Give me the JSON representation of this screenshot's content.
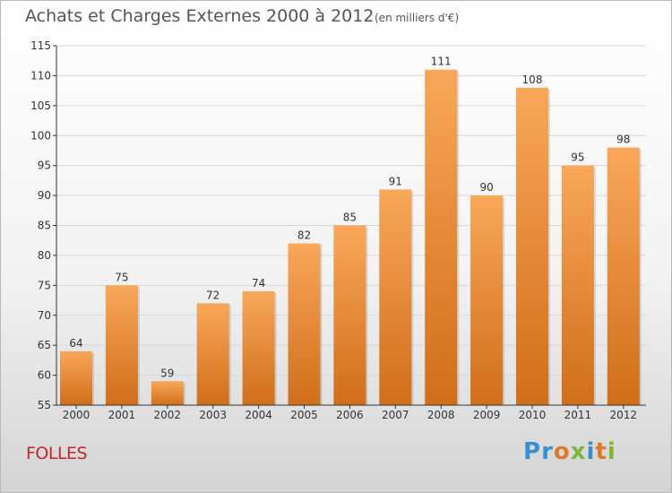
{
  "header": {
    "title": "Achats et Charges Externes 2000 à 2012",
    "unit": "(en milliers d'€)"
  },
  "commune": "FOLLES",
  "logo": {
    "text": "Proxiti",
    "letters": [
      {
        "ch": "P",
        "color": "#3a8fd0"
      },
      {
        "ch": "r",
        "color": "#3a8fd0"
      },
      {
        "ch": "o",
        "color": "#e2762a"
      },
      {
        "ch": "x",
        "color": "#7bb83a"
      },
      {
        "ch": "i",
        "color": "#3a8fd0"
      },
      {
        "ch": "t",
        "color": "#e2762a"
      },
      {
        "ch": "i",
        "color": "#7bb83a"
      }
    ]
  },
  "colors": {
    "bar_top": "#f9a75a",
    "bar_bottom": "#d06e1a",
    "grid": "#d8d8d8",
    "axis": "#333333",
    "text": "#333333"
  },
  "chart_data": {
    "type": "bar",
    "title": "Achats et Charges Externes 2000 à 2012",
    "subtitle": "(en milliers d'€)",
    "categories": [
      "2000",
      "2001",
      "2002",
      "2003",
      "2004",
      "2005",
      "2006",
      "2007",
      "2008",
      "2009",
      "2010",
      "2011",
      "2012"
    ],
    "values": [
      64,
      75,
      59,
      72,
      74,
      82,
      85,
      91,
      111,
      90,
      108,
      95,
      98
    ],
    "data_labels": [
      "64",
      "75",
      "59",
      "72",
      "74",
      "82",
      "85",
      "91",
      "111",
      "90",
      "108",
      "95",
      "98"
    ],
    "ylim": [
      55,
      115
    ],
    "yticks": [
      55,
      60,
      65,
      70,
      75,
      80,
      85,
      90,
      95,
      100,
      105,
      110,
      115
    ],
    "xlabel": "",
    "ylabel": "",
    "grid": true,
    "legend": "none"
  }
}
